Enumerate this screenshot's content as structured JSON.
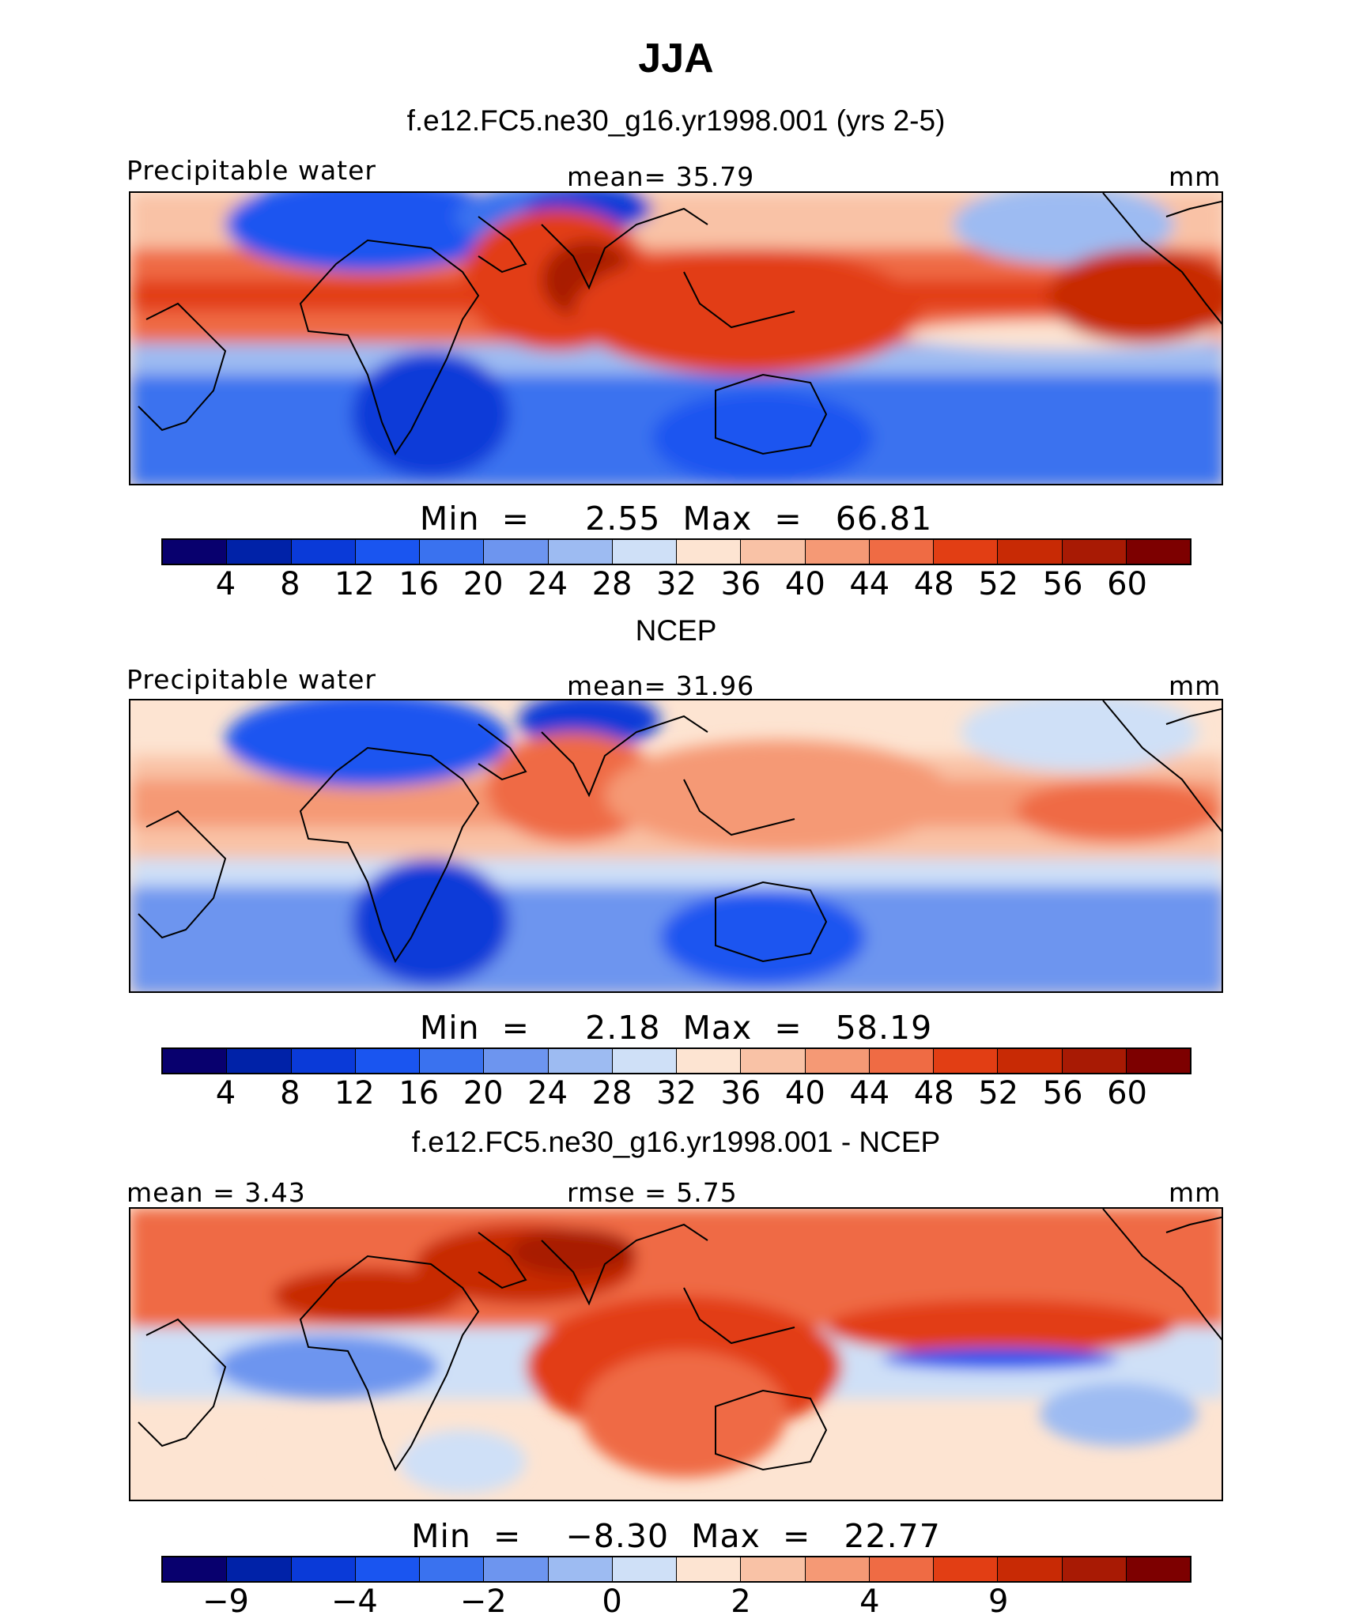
{
  "title": "JJA",
  "chart_data": [
    {
      "type": "heatmap",
      "title": "f.e12.FC5.ne30_g16.yr1998.001 (yrs 2-5)",
      "left_label": "Precipitable water",
      "center_label": "mean=   35.79",
      "units": "mm",
      "min_max": "Min  =     2.55  Max  =   66.81",
      "min": 2.55,
      "max": 66.81,
      "mean": 35.79,
      "colorbar_ticks": [
        "4",
        "8",
        "12",
        "16",
        "20",
        "24",
        "28",
        "32",
        "36",
        "40",
        "44",
        "48",
        "52",
        "56",
        "60"
      ],
      "colors": [
        "#08006e",
        "#0022a8",
        "#0a3ad8",
        "#1a55f0",
        "#3a72ef",
        "#6d95ef",
        "#9dbbf2",
        "#cfe0f7",
        "#fde4d2",
        "#f9c2a6",
        "#f59975",
        "#ef6b44",
        "#e23e14",
        "#c82a05",
        "#a81a04",
        "#7d0000"
      ]
    },
    {
      "type": "heatmap",
      "title": "NCEP",
      "left_label": "Precipitable water",
      "center_label": "mean=   31.96",
      "units": "mm",
      "min_max": "Min  =     2.18  Max  =   58.19",
      "min": 2.18,
      "max": 58.19,
      "mean": 31.96,
      "colorbar_ticks": [
        "4",
        "8",
        "12",
        "16",
        "20",
        "24",
        "28",
        "32",
        "36",
        "40",
        "44",
        "48",
        "52",
        "56",
        "60"
      ],
      "colors": [
        "#08006e",
        "#0022a8",
        "#0a3ad8",
        "#1a55f0",
        "#3a72ef",
        "#6d95ef",
        "#9dbbf2",
        "#cfe0f7",
        "#fde4d2",
        "#f9c2a6",
        "#f59975",
        "#ef6b44",
        "#e23e14",
        "#c82a05",
        "#a81a04",
        "#7d0000"
      ]
    },
    {
      "type": "heatmap",
      "title": "f.e12.FC5.ne30_g16.yr1998.001 - NCEP",
      "left_label": "mean  =     3.43",
      "center_label": "rmse  =     5.75",
      "units": "mm",
      "min_max": "Min  =    −8.30  Max  =   22.77",
      "min": -8.3,
      "max": 22.77,
      "mean": 3.43,
      "rmse": 5.75,
      "colorbar_ticks": [
        "−9",
        "−4",
        "−2",
        "0",
        "2",
        "4",
        "9"
      ],
      "colors": [
        "#08006e",
        "#0022a8",
        "#0a3ad8",
        "#1a55f0",
        "#3a72ef",
        "#6d95ef",
        "#9dbbf2",
        "#cfe0f7",
        "#fde4d2",
        "#f9c2a6",
        "#f59975",
        "#ef6b44",
        "#e23e14",
        "#c82a05",
        "#a81a04",
        "#7d0000"
      ]
    }
  ]
}
